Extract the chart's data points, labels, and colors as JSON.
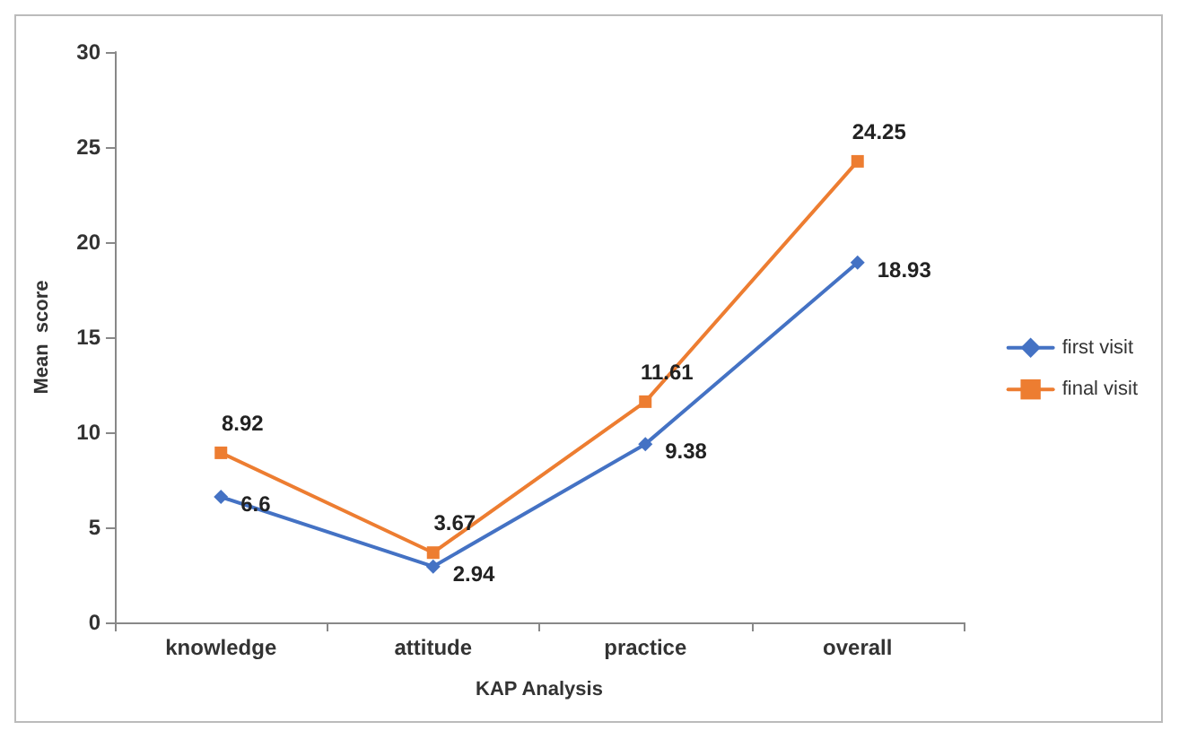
{
  "chart_data": {
    "type": "line",
    "xlabel": "KAP Analysis",
    "ylabel": "Mean  score",
    "categories": [
      "knowledge",
      "attitude",
      "practice",
      "overall"
    ],
    "series": [
      {
        "name": "first visit",
        "color": "#4472c4",
        "marker": "diamond",
        "values": [
          6.6,
          2.94,
          9.38,
          18.93
        ]
      },
      {
        "name": "final visit",
        "color": "#ed7d31",
        "marker": "square",
        "values": [
          8.92,
          3.67,
          11.61,
          24.25
        ]
      }
    ],
    "ylim": [
      0,
      30
    ],
    "yticks": [
      0,
      5,
      10,
      15,
      20,
      25,
      30
    ],
    "grid": false,
    "legend": "right",
    "data_labels": true,
    "line_style": "solid"
  }
}
